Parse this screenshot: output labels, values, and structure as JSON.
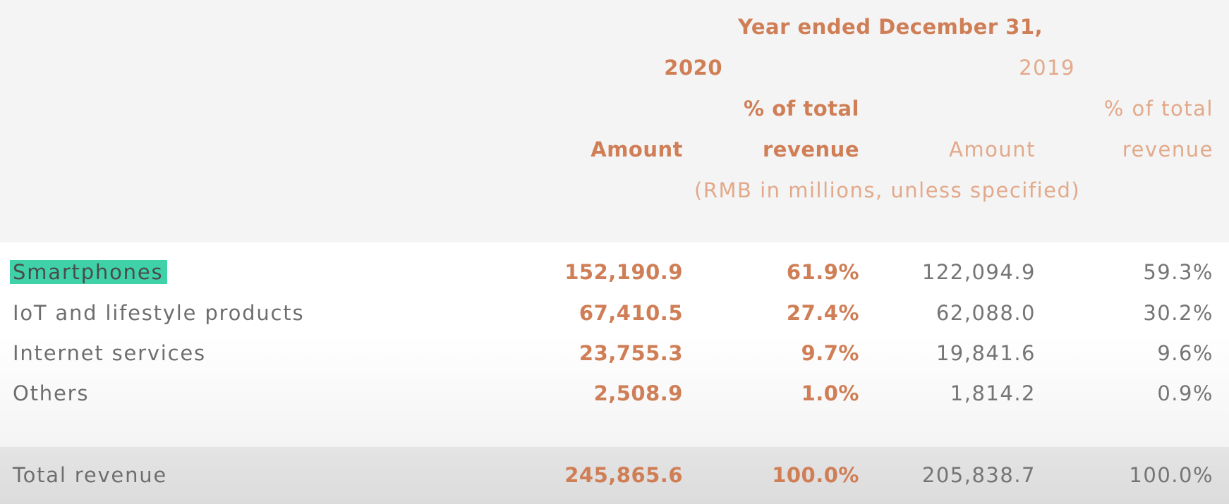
{
  "header": {
    "period_title": "Year ended December 31,",
    "year_current": "2020",
    "year_prior": "2019",
    "col_amount": "Amount",
    "col_pct_line1": "% of total",
    "col_pct_line2": "revenue",
    "units_note": "(RMB in millions, unless specified)"
  },
  "rows": [
    {
      "label": "Smartphones",
      "amount_2020": "152,190.9",
      "pct_2020": "61.9%",
      "amount_2019": "122,094.9",
      "pct_2019": "59.3%",
      "highlight_color": "#3fd2a8"
    },
    {
      "label": "IoT and lifestyle products",
      "amount_2020": "67,410.5",
      "pct_2020": "27.4%",
      "amount_2019": "62,088.0",
      "pct_2019": "30.2%"
    },
    {
      "label": "Internet services",
      "amount_2020": "23,755.3",
      "pct_2020": "9.7%",
      "amount_2019": "19,841.6",
      "pct_2019": "9.6%"
    },
    {
      "label": "Others",
      "amount_2020": "2,508.9",
      "pct_2020": "1.0%",
      "amount_2019": "1,814.2",
      "pct_2019": "0.9%"
    }
  ],
  "total": {
    "label": "Total revenue",
    "amount_2020": "245,865.6",
    "pct_2020": "100.0%",
    "amount_2019": "205,838.7",
    "pct_2019": "100.0%"
  },
  "colors": {
    "accent_bold": "#cf7e56",
    "accent_light": "#e2a98a",
    "text_gray": "#6e6e6e"
  }
}
